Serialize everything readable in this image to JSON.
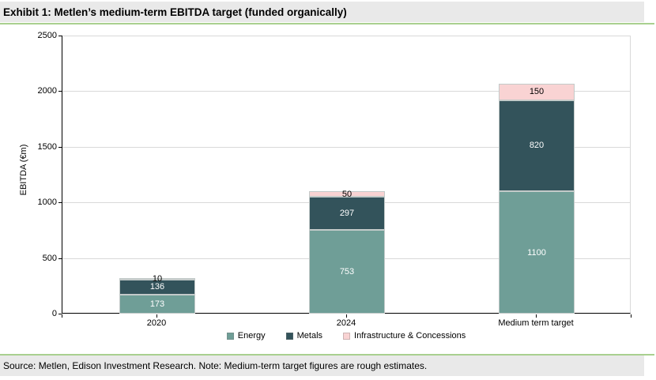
{
  "header": {
    "title": "Exhibit 1: Metlen’s medium-term EBITDA target (funded organically)"
  },
  "footer": {
    "source_note": "Source: Metlen, Edison Investment Research. Note: Medium-term target figures are rough estimates."
  },
  "colors": {
    "banner_bg": "#e9e9e9",
    "accent_line": "#a9d08f",
    "gridline": "#d9d9d9",
    "axis": "#000000",
    "energy": "#6f9e97",
    "metals": "#33535b",
    "infrastructure": "#f9d3d3"
  },
  "chart_data": {
    "type": "bar",
    "stacked": true,
    "title": "Exhibit 1: Metlen’s medium-term EBITDA target (funded organically)",
    "categories": [
      "2020",
      "2024",
      "Medium term target"
    ],
    "series": [
      {
        "name": "Energy",
        "values": [
          173,
          753,
          1100
        ],
        "color": "#6f9e97",
        "label_color": "#ffffff"
      },
      {
        "name": "Metals",
        "values": [
          136,
          297,
          820
        ],
        "color": "#33535b",
        "label_color": "#ffffff"
      },
      {
        "name": "Infrastructure & Concessions",
        "values": [
          10,
          50,
          150
        ],
        "color": "#f9d3d3",
        "label_color": "#000000"
      }
    ],
    "xlabel": "",
    "ylabel": "EBITDA (€m)",
    "ylim": [
      0,
      2500
    ],
    "yticks": [
      0,
      500,
      1000,
      1500,
      2000,
      2500
    ],
    "grid": true,
    "legend_position": "bottom"
  }
}
